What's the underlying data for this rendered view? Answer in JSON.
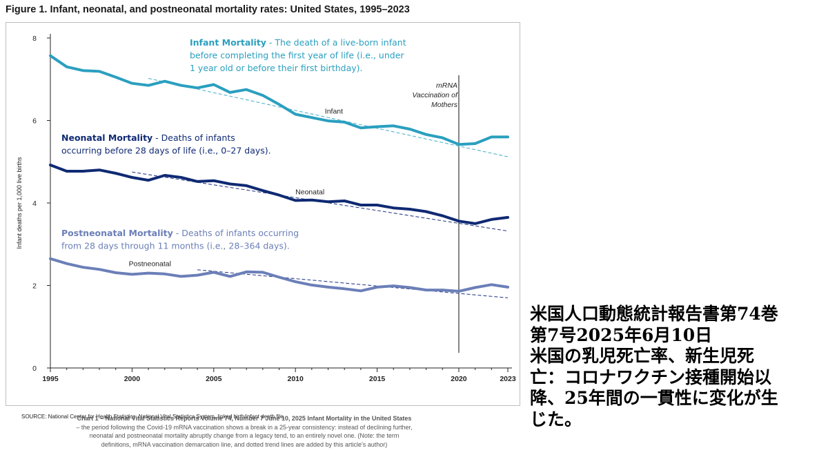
{
  "figure_title": "Figure 1. Infant, neonatal, and postneonatal mortality rates: United States, 1995–2023",
  "source_note": "SOURCE: National Center for Health Statistics, National Vital Statistics System, linked birth/infant death file.",
  "caption": {
    "bold": "Chart 1 – National Vital Statistics Reports Volume 74, Number 7 June 10, 2025 Infant Mortality in the United States",
    "rest": " – the period following the Covid-19 mRNA vaccination shows a break in a 25-year consistency: instead of declining further, neonatal and postneonatal mortality abruptly change from a legacy tend, to an entirely novel one. (Note: the term definitions, mRNA vaccination demarcation line, and dotted trend lines are added by this article's author)"
  },
  "jp_lines": [
    "米国人口動態統計報告書第74巻",
    "第7号2025年6月10日",
    "米国の乳児死亡率、新生児死",
    "亡：コロナワクチン接種開始以",
    "降、25年間の一貫性に変化が生",
    "じた。"
  ],
  "colors": {
    "infant": "#2a9fbf",
    "neonatal": "#0f2a73",
    "postneonatal": "#6b7fb8",
    "infant_trend": "#4fb3cf",
    "neonatal_trend": "#2e3f8a",
    "postneonatal_trend": "#2e3f8a",
    "axis": "#222222"
  },
  "chart_data": {
    "type": "line",
    "title": "Figure 1. Infant, neonatal, and postneonatal mortality rates: United States, 1995–2023",
    "xlabel": "",
    "ylabel": "Infant deaths per 1,000 live births",
    "xlim": [
      1995,
      2023
    ],
    "ylim": [
      0,
      8
    ],
    "x_ticks": [
      1995,
      2000,
      2005,
      2010,
      2015,
      2020,
      2023
    ],
    "y_ticks": [
      0,
      2,
      4,
      6,
      8
    ],
    "x": [
      1995,
      1996,
      1997,
      1998,
      1999,
      2000,
      2001,
      2002,
      2003,
      2004,
      2005,
      2006,
      2007,
      2008,
      2009,
      2010,
      2011,
      2012,
      2013,
      2014,
      2015,
      2016,
      2017,
      2018,
      2019,
      2020,
      2021,
      2022,
      2023
    ],
    "series": [
      {
        "name": "Infant",
        "key": "infant",
        "values": [
          7.57,
          7.3,
          7.21,
          7.19,
          7.05,
          6.9,
          6.85,
          6.95,
          6.85,
          6.79,
          6.87,
          6.68,
          6.75,
          6.61,
          6.39,
          6.15,
          6.07,
          5.99,
          5.96,
          5.82,
          5.85,
          5.87,
          5.79,
          5.66,
          5.58,
          5.42,
          5.44,
          5.6,
          5.6
        ],
        "trend": [
          [
            2001,
            7.02
          ],
          [
            2023,
            5.12
          ]
        ]
      },
      {
        "name": "Neonatal",
        "key": "neonatal",
        "values": [
          4.92,
          4.77,
          4.77,
          4.8,
          4.72,
          4.62,
          4.55,
          4.67,
          4.62,
          4.52,
          4.54,
          4.46,
          4.42,
          4.3,
          4.19,
          4.06,
          4.07,
          4.03,
          4.05,
          3.95,
          3.95,
          3.88,
          3.85,
          3.79,
          3.69,
          3.56,
          3.5,
          3.6,
          3.65
        ],
        "trend": [
          [
            2000,
            4.75
          ],
          [
            2023,
            3.32
          ]
        ]
      },
      {
        "name": "Postneonatal",
        "key": "postneonatal",
        "values": [
          2.65,
          2.53,
          2.44,
          2.39,
          2.31,
          2.27,
          2.3,
          2.28,
          2.22,
          2.25,
          2.32,
          2.22,
          2.33,
          2.32,
          2.2,
          2.09,
          2.01,
          1.96,
          1.92,
          1.87,
          1.96,
          1.99,
          1.95,
          1.89,
          1.89,
          1.86,
          1.95,
          2.02,
          1.96
        ],
        "trend": [
          [
            2004,
            2.38
          ],
          [
            2023,
            1.7
          ]
        ]
      }
    ],
    "line_labels": {
      "infant": {
        "text": "Infant",
        "year": 2011.8,
        "value": 6.17
      },
      "neonatal": {
        "text": "Neonatal",
        "year": 2010.0,
        "value": 4.21
      },
      "postneonatal": {
        "text": "Postneonatal",
        "year": 1999.8,
        "value": 2.47
      }
    },
    "vertical_marker": {
      "year": 2020,
      "label_lines": [
        "mRNA",
        "Vaccination of",
        "Mothers"
      ]
    },
    "annotations": [
      {
        "key": "infant",
        "title": "Infant Mortality",
        "sep": " - ",
        "lines": [
          "The death of a live-born infant",
          "before completing the first year of life (i.e., under",
          "1 year old or before their first birthday)."
        ]
      },
      {
        "key": "neonatal",
        "title": "Neonatal Mortality",
        "sep": " -  ",
        "lines": [
          "Deaths of infants",
          "occurring before 28 days of life (i.e., 0–27 days)."
        ]
      },
      {
        "key": "postneonatal",
        "title": "Postneonatal Mortality",
        "sep": " -  ",
        "lines": [
          "Deaths of infants occurring",
          "from 28 days through 11 months (i.e., 28–364 days)."
        ]
      }
    ]
  }
}
